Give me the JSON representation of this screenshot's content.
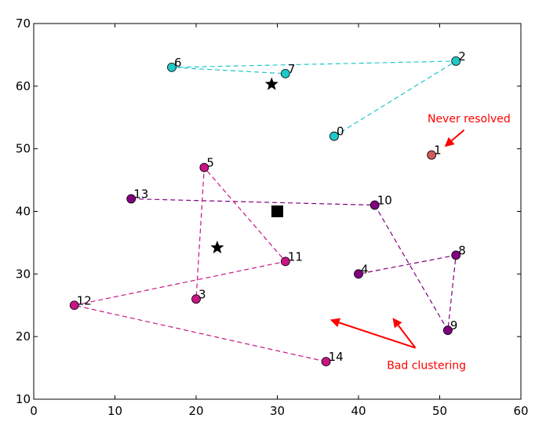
{
  "chart_data": {
    "type": "scatter",
    "xlim": [
      0,
      60
    ],
    "ylim": [
      10,
      70
    ],
    "xticks": [
      0,
      10,
      20,
      30,
      40,
      50,
      60
    ],
    "yticks": [
      10,
      20,
      30,
      40,
      50,
      60,
      70
    ],
    "points": [
      {
        "id": "0",
        "x": 37,
        "y": 52,
        "color": "#20c8c8"
      },
      {
        "id": "1",
        "x": 49,
        "y": 49,
        "color": "#cd5c5c"
      },
      {
        "id": "2",
        "x": 52,
        "y": 64,
        "color": "#20c8c8"
      },
      {
        "id": "3",
        "x": 20,
        "y": 26,
        "color": "#c71585"
      },
      {
        "id": "4",
        "x": 40,
        "y": 30,
        "color": "#800080"
      },
      {
        "id": "5",
        "x": 21,
        "y": 47,
        "color": "#c71585"
      },
      {
        "id": "6",
        "x": 17,
        "y": 63,
        "color": "#20c8c8"
      },
      {
        "id": "7",
        "x": 31,
        "y": 62,
        "color": "#20c8c8"
      },
      {
        "id": "8",
        "x": 52,
        "y": 33,
        "color": "#800080"
      },
      {
        "id": "9",
        "x": 51,
        "y": 21,
        "color": "#800080"
      },
      {
        "id": "10",
        "x": 42,
        "y": 41,
        "color": "#800080"
      },
      {
        "id": "11",
        "x": 31,
        "y": 32,
        "color": "#c71585"
      },
      {
        "id": "12",
        "x": 5,
        "y": 25,
        "color": "#c71585"
      },
      {
        "id": "13",
        "x": 12,
        "y": 42,
        "color": "#800080"
      },
      {
        "id": "14",
        "x": 36,
        "y": 16,
        "color": "#c71585"
      }
    ],
    "paths": [
      {
        "name": "cyan-cluster",
        "color": "#20c8c8",
        "ids": [
          "0",
          "2",
          "6",
          "7"
        ]
      },
      {
        "name": "purple-cluster",
        "color": "#800080",
        "ids": [
          "13",
          "10",
          "9",
          "8",
          "4"
        ]
      },
      {
        "name": "magenta-cluster",
        "color": "#c71585",
        "ids": [
          "14",
          "12",
          "11",
          "5",
          "3"
        ]
      }
    ],
    "markers": [
      {
        "name": "star-cyan-centroid",
        "shape": "star",
        "x": 29.3,
        "y": 60.3
      },
      {
        "name": "star-lower-centroid",
        "shape": "star",
        "x": 22.6,
        "y": 34.2
      },
      {
        "name": "square-centroid",
        "shape": "square",
        "x": 30,
        "y": 40
      }
    ],
    "annotations": [
      {
        "name": "never-resolved",
        "text": "Never resolved",
        "color": "#ff0000",
        "text_x": 48.5,
        "text_y": 54.2,
        "arrows": [
          {
            "fx": 53,
            "fy": 53,
            "tx": 50.6,
            "ty": 50.3
          }
        ]
      },
      {
        "name": "bad-clustering",
        "text": "Bad clustering",
        "color": "#ff0000",
        "text_x": 43.5,
        "text_y": 14.8,
        "arrows": [
          {
            "fx": 47,
            "fy": 18.2,
            "tx": 36.5,
            "ty": 22.7
          },
          {
            "fx": 47,
            "fy": 18.2,
            "tx": 44.2,
            "ty": 23.0
          }
        ]
      }
    ]
  }
}
